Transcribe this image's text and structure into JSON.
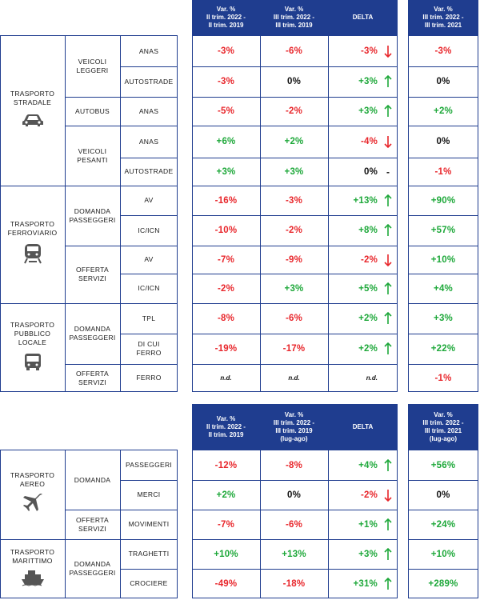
{
  "colors": {
    "header_bg": "#1f3d8f",
    "positive": "#1ea83a",
    "negative": "#e8262b",
    "border": "#1f3d8f"
  },
  "top": {
    "headers": {
      "c1": "Var. %\nII trim. 2022 -\nII trim. 2019",
      "c2": "Var. %\nIII trim. 2022 -\nIII trim. 2019",
      "delta": "DELTA",
      "c4": "Var. %\nIII trim. 2022 -\nIII trim. 2021"
    },
    "groups": [
      {
        "name": "TRASPORTO\nSTRADALE",
        "icon": "car-icon"
      },
      {
        "name": "TRASPORTO\nFERROVIARIO",
        "icon": "train-icon"
      },
      {
        "name": "TRASPORTO\nPUBBLICO\nLOCALE",
        "icon": "bus-icon"
      }
    ],
    "subgroups": [
      "VEICOLI\nLEGGERI",
      "AUTOBUS",
      "VEICOLI\nPESANTI",
      "DOMANDA\nPASSEGGERI",
      "OFFERTA\nSERVIZI",
      "DOMANDA\nPASSEGGERI",
      "OFFERTA\nSERVIZI"
    ],
    "rows": [
      {
        "item": "ANAS",
        "c1": "-3%",
        "c2": "-6%",
        "delta": "-3%",
        "dir": "down",
        "c4": "-3%"
      },
      {
        "item": "AUTOSTRADE",
        "c1": "-3%",
        "c2": "0%",
        "delta": "+3%",
        "dir": "up",
        "c4": "0%"
      },
      {
        "item": "ANAS",
        "c1": "-5%",
        "c2": "-2%",
        "delta": "+3%",
        "dir": "up",
        "c4": "+2%"
      },
      {
        "item": "ANAS",
        "c1": "+6%",
        "c2": "+2%",
        "delta": "-4%",
        "dir": "down",
        "c4": "0%"
      },
      {
        "item": "AUTOSTRADE",
        "c1": "+3%",
        "c2": "+3%",
        "delta": "0%",
        "dir": "none",
        "c4": "-1%"
      },
      {
        "item": "AV",
        "c1": "-16%",
        "c2": "-3%",
        "delta": "+13%",
        "dir": "up",
        "c4": "+90%"
      },
      {
        "item": "IC/ICN",
        "c1": "-10%",
        "c2": "-2%",
        "delta": "+8%",
        "dir": "up",
        "c4": "+57%"
      },
      {
        "item": "AV",
        "c1": "-7%",
        "c2": "-9%",
        "delta": "-2%",
        "dir": "down",
        "c4": "+10%"
      },
      {
        "item": "IC/ICN",
        "c1": "-2%",
        "c2": "+3%",
        "delta": "+5%",
        "dir": "up",
        "c4": "+4%"
      },
      {
        "item": "TPL",
        "c1": "-8%",
        "c2": "-6%",
        "delta": "+2%",
        "dir": "up",
        "c4": "+3%"
      },
      {
        "item": "di cui\nFERRO",
        "c1": "-19%",
        "c2": "-17%",
        "delta": "+2%",
        "dir": "up",
        "c4": "+22%"
      },
      {
        "item": "FERRO",
        "c1": "n.d.",
        "c2": "n.d.",
        "delta": "n.d.",
        "dir": "none",
        "c4": "-1%"
      }
    ]
  },
  "bottom": {
    "headers": {
      "c1": "Var. %\nII trim. 2022 -\nII trim. 2019",
      "c2": "Var. %\nIII trim. 2022 -\nIII trim. 2019\n(lug-ago)",
      "delta": "DELTA",
      "c4": "Var. %\nIII trim. 2022 -\nIII trim. 2021\n(lug-ago)"
    },
    "groups": [
      {
        "name": "TRASPORTO\nAEREO",
        "icon": "airplane-icon"
      },
      {
        "name": "TRASPORTO\nMARITTIMO",
        "icon": "ship-icon"
      }
    ],
    "subgroups": [
      "DOMANDA",
      "OFFERTA\nSERVIZI",
      "DOMANDA\nPASSEGGERI"
    ],
    "rows": [
      {
        "item": "PASSEGGERI",
        "c1": "-12%",
        "c2": "-8%",
        "delta": "+4%",
        "dir": "up",
        "c4": "+56%"
      },
      {
        "item": "MERCI",
        "c1": "+2%",
        "c2": "0%",
        "delta": "-2%",
        "dir": "down",
        "c4": "0%"
      },
      {
        "item": "MOVIMENTI",
        "c1": "-7%",
        "c2": "-6%",
        "delta": "+1%",
        "dir": "up",
        "c4": "+24%"
      },
      {
        "item": "TRAGHETTI",
        "c1": "+10%",
        "c2": "+13%",
        "delta": "+3%",
        "dir": "up",
        "c4": "+10%"
      },
      {
        "item": "CROCIERE",
        "c1": "-49%",
        "c2": "-18%",
        "delta": "+31%",
        "dir": "up",
        "c4": "+289%"
      }
    ]
  }
}
